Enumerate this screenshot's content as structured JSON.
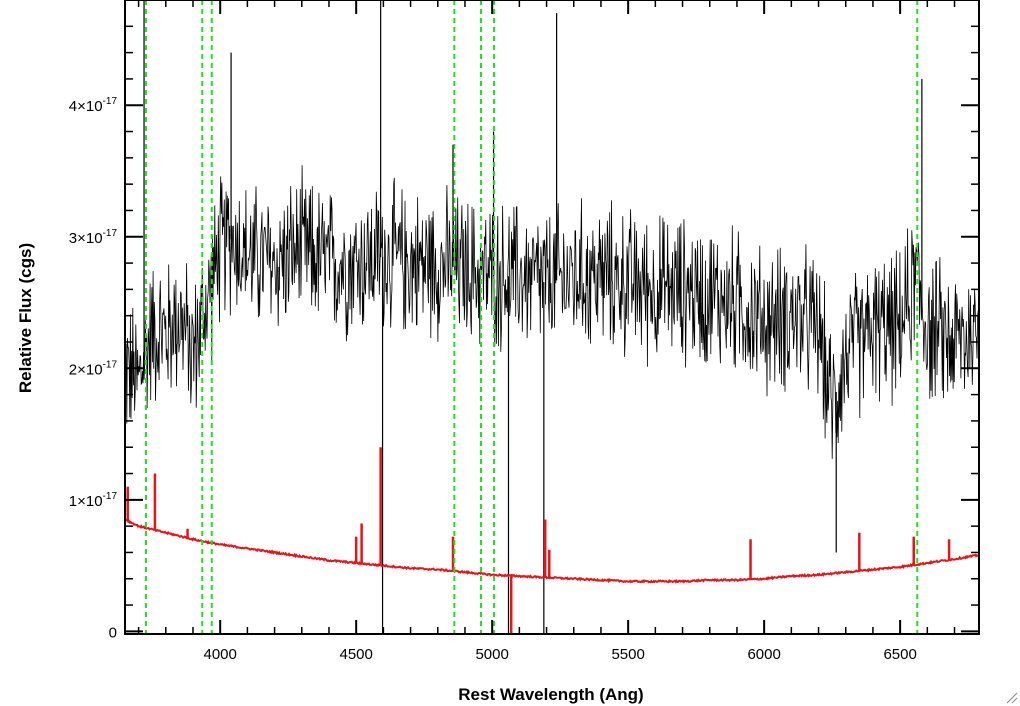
{
  "chart_data": {
    "type": "line",
    "title": "",
    "xlabel": "Rest Wavelength (Ang)",
    "ylabel": "Relative Flux (cgs)",
    "xlim": [
      3650,
      6790
    ],
    "ylim": [
      -2e-19,
      4.8e-17
    ],
    "x_ticks": [
      {
        "value": 4000,
        "label": "4000"
      },
      {
        "value": 4500,
        "label": "4500"
      },
      {
        "value": 5000,
        "label": "5000"
      },
      {
        "value": 5500,
        "label": "5500"
      },
      {
        "value": 6000,
        "label": "6000"
      },
      {
        "value": 6500,
        "label": "6500"
      }
    ],
    "y_ticks": [
      {
        "value": 0,
        "mantissa": "0",
        "exponent": ""
      },
      {
        "value": 1e-17,
        "mantissa": "1×10",
        "exponent": "-17"
      },
      {
        "value": 2e-17,
        "mantissa": "2×10",
        "exponent": "-17"
      },
      {
        "value": 3e-17,
        "mantissa": "3×10",
        "exponent": "-17"
      },
      {
        "value": 4e-17,
        "mantissa": "4×10",
        "exponent": "-17"
      }
    ],
    "grid": false,
    "legend": "none",
    "emission_lines": [
      3727,
      3934,
      3969,
      4861,
      4959,
      5007,
      6563
    ],
    "series": [
      {
        "color": "#000000",
        "style": "noisy-line",
        "x": [
          3650,
          3700,
          3750,
          3800,
          3850,
          3900,
          3950,
          4000,
          4050,
          4100,
          4200,
          4300,
          4400,
          4500,
          4600,
          4700,
          4800,
          4900,
          5000,
          5100,
          5200,
          5300,
          5400,
          5500,
          5600,
          5700,
          5800,
          5900,
          6000,
          6100,
          6200,
          6250,
          6300,
          6400,
          6500,
          6560,
          6600,
          6700,
          6790
        ],
        "y": [
          2e-17,
          1.9e-17,
          2.3e-17,
          2.25e-17,
          2.4e-17,
          2.1e-17,
          2.5e-17,
          2.9e-17,
          3e-17,
          2.85e-17,
          2.8e-17,
          2.9e-17,
          2.8e-17,
          2.8e-17,
          2.85e-17,
          2.8e-17,
          2.8e-17,
          2.75e-17,
          2.7e-17,
          2.7e-17,
          2.65e-17,
          2.7e-17,
          2.7e-17,
          2.65e-17,
          2.6e-17,
          2.6e-17,
          2.55e-17,
          2.5e-17,
          2.35e-17,
          2.4e-17,
          2.3e-17,
          1.7e-17,
          2.1e-17,
          2.3e-17,
          2.3e-17,
          2.7e-17,
          2.3e-17,
          2.2e-17,
          2.3e-17
        ],
        "spikes": [
          {
            "x": 4590,
            "y": 4.9e-17
          },
          {
            "x": 4597,
            "y": -2e-19
          },
          {
            "x": 5060,
            "y": -2e-19
          },
          {
            "x": 5190,
            "y": -2e-19
          },
          {
            "x": 5237,
            "y": 4.7e-17
          },
          {
            "x": 4040,
            "y": 4.4e-17
          },
          {
            "x": 4856,
            "y": 3.7e-17
          },
          {
            "x": 5005,
            "y": 3.8e-17
          },
          {
            "x": 3720,
            "y": 4.9e-17
          },
          {
            "x": 6265,
            "y": 6e-18
          },
          {
            "x": 6580,
            "y": 4.2e-17
          }
        ]
      },
      {
        "color": "#e8141a",
        "style": "smooth-line",
        "x": [
          3650,
          3700,
          3800,
          3900,
          4000,
          4100,
          4200,
          4300,
          4400,
          4500,
          4600,
          4700,
          4800,
          4900,
          5000,
          5100,
          5200,
          5300,
          5400,
          5500,
          5600,
          5700,
          5800,
          5900,
          6000,
          6100,
          6200,
          6300,
          6400,
          6500,
          6600,
          6700,
          6790
        ],
        "y": [
          8.5e-18,
          8e-18,
          7.5e-18,
          7e-18,
          6.6e-18,
          6.3e-18,
          6e-18,
          5.7e-18,
          5.4e-18,
          5.2e-18,
          5e-18,
          4.8e-18,
          4.7e-18,
          4.5e-18,
          4.3e-18,
          4.2e-18,
          4.1e-18,
          4e-18,
          3.9e-18,
          3.8e-18,
          3.8e-18,
          3.8e-18,
          3.9e-18,
          3.9e-18,
          4e-18,
          4.2e-18,
          4.3e-18,
          4.5e-18,
          4.7e-18,
          4.9e-18,
          5.2e-18,
          5.5e-18,
          5.8e-18
        ],
        "spikes": [
          {
            "x": 3660,
            "y": 1.1e-17
          },
          {
            "x": 3760,
            "y": 1.2e-17
          },
          {
            "x": 3880,
            "y": 7.8e-18
          },
          {
            "x": 4500,
            "y": 7.2e-18
          },
          {
            "x": 4520,
            "y": 8.2e-18
          },
          {
            "x": 4590,
            "y": 1.4e-17
          },
          {
            "x": 4856,
            "y": 7.2e-18
          },
          {
            "x": 5070,
            "y": -2e-19
          },
          {
            "x": 5195,
            "y": 8.5e-18
          },
          {
            "x": 5210,
            "y": 6.2e-18
          },
          {
            "x": 5950,
            "y": 7e-18
          },
          {
            "x": 6350,
            "y": 7.5e-18
          },
          {
            "x": 6550,
            "y": 7.2e-18
          },
          {
            "x": 6680,
            "y": 7e-18
          }
        ]
      }
    ],
    "reference_line_color": "#19e619"
  }
}
